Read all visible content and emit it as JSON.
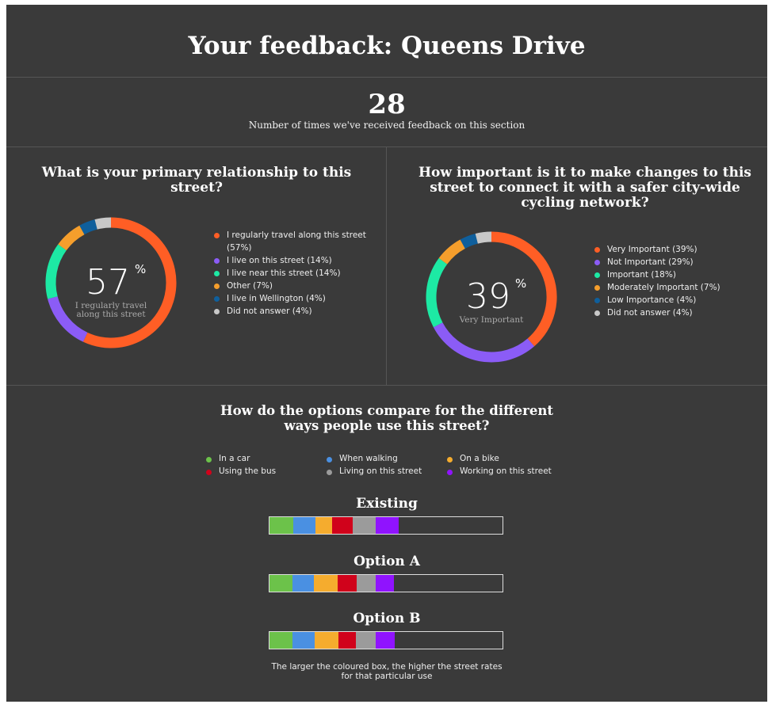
{
  "header": {
    "title": "Your feedback: Queens Drive",
    "count": "28",
    "count_caption": "Number of times we've received feedback on this section"
  },
  "chart_data": [
    {
      "type": "pie",
      "title": "What is your primary relationship to this street?",
      "center_value": "57",
      "center_unit": "%",
      "center_label": "I regularly travel along this street",
      "labels": [
        "I regularly travel along this street (57%)",
        "I live on this street (14%)",
        "I live near this street (14%)",
        "Other (7%)",
        "I live in Wellington (4%)",
        "Did not answer (4%)"
      ],
      "values": [
        57,
        14,
        14,
        7,
        4,
        4
      ],
      "colors": [
        "#ff5e25",
        "#8b5cf6",
        "#1de9a4",
        "#f59e2c",
        "#0f5f9c",
        "#c8c8c8"
      ]
    },
    {
      "type": "pie",
      "title": "How important is it to make changes to this street to connect it with a safer city-wide cycling network?",
      "center_value": "39",
      "center_unit": "%",
      "center_label": "Very Important",
      "labels": [
        "Very Important (39%)",
        "Not Important (29%)",
        "Important (18%)",
        "Moderately Important (7%)",
        "Low Importance (4%)",
        "Did not answer (4%)"
      ],
      "values": [
        39,
        29,
        18,
        7,
        4,
        4
      ],
      "colors": [
        "#ff5e25",
        "#8b5cf6",
        "#1de9a4",
        "#f59e2c",
        "#0f5f9c",
        "#c8c8c8"
      ]
    },
    {
      "type": "bar",
      "title": "How do the options compare for the different ways people use this street?",
      "categories": [
        "In a car",
        "Using the bus",
        "When walking",
        "Living on this street",
        "On a bike",
        "Working on this street"
      ],
      "segment_order": [
        "In a car",
        "When walking",
        "On a bike",
        "Using the bus",
        "Living on this street",
        "Working on this street"
      ],
      "colors": [
        "#6cc24a",
        "#4a90e2",
        "#f5ac2e",
        "#d0021b",
        "#9b9b9b",
        "#9013fe"
      ],
      "max_total": 296,
      "series": [
        {
          "name": "Existing",
          "values": [
            30,
            28,
            22,
            26,
            29,
            29
          ]
        },
        {
          "name": "Option A",
          "values": [
            29,
            27,
            31,
            24,
            24,
            23
          ]
        },
        {
          "name": "Option B",
          "values": [
            29,
            28,
            31,
            22,
            25,
            24
          ]
        }
      ]
    }
  ],
  "footnote": "The larger the coloured box, the higher the street rates for that particular use"
}
